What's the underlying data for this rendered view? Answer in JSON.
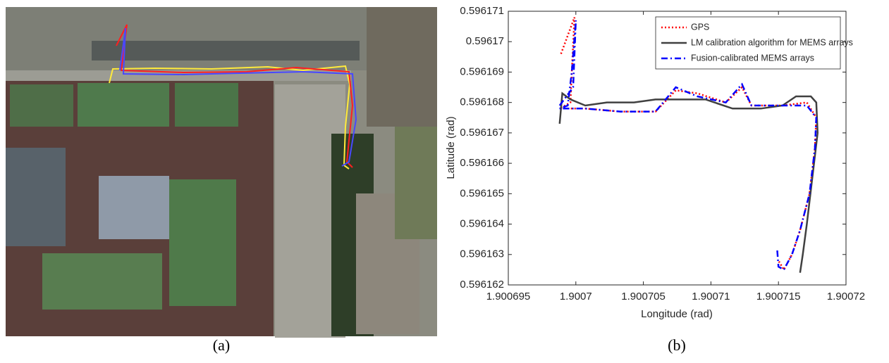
{
  "panel_labels": [
    "(a)",
    "(b)"
  ],
  "chart_data": {
    "type": "line",
    "x_label": "Longitude (rad)",
    "y_label": "Latitude (rad)",
    "xlim": [
      1.900695,
      1.90072
    ],
    "xticks": [
      1.900695,
      1.9007,
      1.900705,
      1.90071,
      1.900715,
      1.90072
    ],
    "ylim": [
      0.596162,
      0.596171
    ],
    "yticks": [
      0.596162,
      0.596163,
      0.596164,
      0.596165,
      0.596166,
      0.596167,
      0.596168,
      0.596169,
      0.59617,
      0.596171
    ],
    "legend": "upper-right",
    "grid": false,
    "series": [
      {
        "name": "GPS",
        "color": "#ff0000",
        "style": "dotted",
        "x": [
          1.9006989,
          1.9006999,
          1.9006997,
          1.9006996,
          1.9006988,
          1.9007007,
          1.9007033,
          1.9007059,
          1.9007074,
          1.900709,
          1.9007111,
          1.9007123,
          1.900713,
          1.9007153,
          1.9007171,
          1.9007178,
          1.9007177,
          1.9007173,
          1.9007166,
          1.900716,
          1.9007154,
          1.900715
        ],
        "values": [
          0.5961696,
          0.5961708,
          0.596169,
          0.596168,
          0.5961678,
          0.5961678,
          0.5961677,
          0.5961677,
          0.5961684,
          0.5961683,
          0.596168,
          0.5961685,
          0.5961679,
          0.5961679,
          0.596168,
          0.5961675,
          0.5961665,
          0.596165,
          0.5961638,
          0.596163,
          0.5961625,
          0.5961628
        ]
      },
      {
        "name": "LM calibration algorithm for MEMS arrays",
        "color": "#404040",
        "style": "solid",
        "x": [
          1.9006988,
          1.900699,
          1.9006996,
          1.9007007,
          1.9007023,
          1.9007043,
          1.9007059,
          1.9007075,
          1.9007096,
          1.9007116,
          1.9007137,
          1.9007153,
          1.9007163,
          1.9007174,
          1.9007178,
          1.9007179,
          1.9007175,
          1.9007171,
          1.9007168,
          1.9007166
        ],
        "values": [
          0.5961673,
          0.5961683,
          0.5961681,
          0.5961679,
          0.596168,
          0.596168,
          0.5961681,
          0.5961681,
          0.5961681,
          0.5961678,
          0.5961678,
          0.5961679,
          0.5961682,
          0.5961682,
          0.596168,
          0.596167,
          0.5961655,
          0.596164,
          0.596163,
          0.5961624
        ]
      },
      {
        "name": "Fusion-calibrated MEMS arrays",
        "color": "#0000ff",
        "style": "dashdot",
        "x": [
          1.9006988,
          1.9006998,
          1.9007,
          1.9006997,
          1.9006994,
          1.9006988,
          1.9007007,
          1.9007033,
          1.9007059,
          1.9007074,
          1.900709,
          1.9007111,
          1.9007123,
          1.900713,
          1.9007153,
          1.9007171,
          1.9007178,
          1.9007177,
          1.9007173,
          1.9007166,
          1.900716,
          1.9007154,
          1.900715,
          1.9007149
        ],
        "values": [
          0.5961679,
          0.5961685,
          0.5961707,
          0.596169,
          0.5961679,
          0.5961678,
          0.5961678,
          0.5961677,
          0.5961677,
          0.5961685,
          0.5961682,
          0.596168,
          0.5961686,
          0.5961679,
          0.5961679,
          0.5961679,
          0.5961675,
          0.5961665,
          0.596165,
          0.5961638,
          0.596163,
          0.5961625,
          0.5961626,
          0.5961632
        ]
      }
    ]
  }
}
